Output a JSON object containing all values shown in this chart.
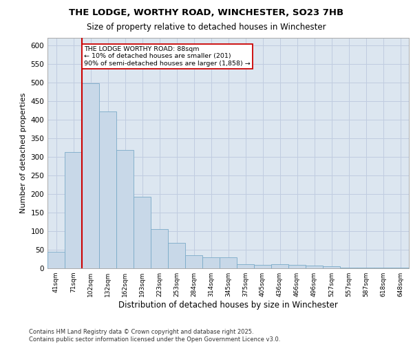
{
  "title_line1": "THE LODGE, WORTHY ROAD, WINCHESTER, SO23 7HB",
  "title_line2": "Size of property relative to detached houses in Winchester",
  "xlabel": "Distribution of detached houses by size in Winchester",
  "ylabel": "Number of detached properties",
  "categories": [
    "41sqm",
    "71sqm",
    "102sqm",
    "132sqm",
    "162sqm",
    "193sqm",
    "223sqm",
    "253sqm",
    "284sqm",
    "314sqm",
    "345sqm",
    "375sqm",
    "405sqm",
    "436sqm",
    "466sqm",
    "496sqm",
    "527sqm",
    "557sqm",
    "587sqm",
    "618sqm",
    "648sqm"
  ],
  "values": [
    45,
    313,
    498,
    422,
    318,
    193,
    105,
    68,
    36,
    30,
    30,
    12,
    10,
    12,
    10,
    7,
    5,
    2,
    1,
    1,
    2
  ],
  "bar_color": "#c8d8e8",
  "bar_edge_color": "#7aaac8",
  "annotation_text": "THE LODGE WORTHY ROAD: 88sqm\n← 10% of detached houses are smaller (201)\n90% of semi-detached houses are larger (1,858) →",
  "annotation_box_color": "#ffffff",
  "annotation_box_edge_color": "#cc0000",
  "vline_x": 1.5,
  "vline_color": "#cc0000",
  "grid_color": "#c0cce0",
  "bg_color": "#dce6f0",
  "fig_bg_color": "#ffffff",
  "footer": "Contains HM Land Registry data © Crown copyright and database right 2025.\nContains public sector information licensed under the Open Government Licence v3.0.",
  "ylim": [
    0,
    620
  ],
  "yticks": [
    0,
    50,
    100,
    150,
    200,
    250,
    300,
    350,
    400,
    450,
    500,
    550,
    600
  ]
}
